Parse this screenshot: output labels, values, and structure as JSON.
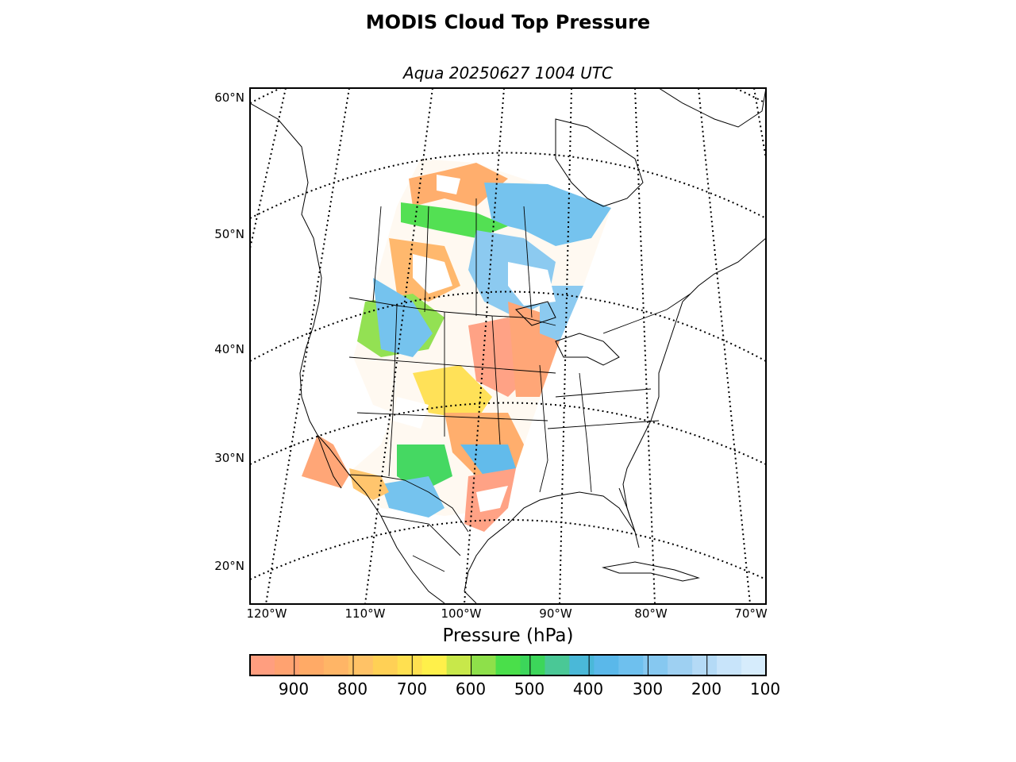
{
  "title": "MODIS Cloud Top Pressure",
  "subtitle": "Aqua 20250627 1004 UTC",
  "lat_labels": [
    "60°N",
    "50°N",
    "40°N",
    "30°N",
    "20°N"
  ],
  "lon_labels": [
    "120°W",
    "110°W",
    "100°W",
    "90°W",
    "80°W",
    "70°W"
  ],
  "colorbar": {
    "label": "Pressure (hPa)",
    "ticks": [
      "900",
      "800",
      "700",
      "600",
      "500",
      "400",
      "300",
      "200",
      "100"
    ],
    "range": [
      975,
      100
    ],
    "colors": [
      "#ff9e7f",
      "#ffa270",
      "#ffaa66",
      "#ffb566",
      "#ffc266",
      "#ffd055",
      "#ffe050",
      "#fff04a",
      "#c8e84a",
      "#8ee04a",
      "#4adf4a",
      "#3cd65a",
      "#4ac896",
      "#4ab8d8",
      "#5ab8ea",
      "#6ec0ee",
      "#86c8f0",
      "#9ed0f2",
      "#b4daf6",
      "#c8e4fa",
      "#d6ecfc"
    ]
  },
  "map": {
    "projection": "lambert-conformal",
    "lat_range": [
      17,
      61
    ],
    "lon_range": [
      -122,
      -68
    ],
    "field": "cloud top pressure (hPa)"
  }
}
